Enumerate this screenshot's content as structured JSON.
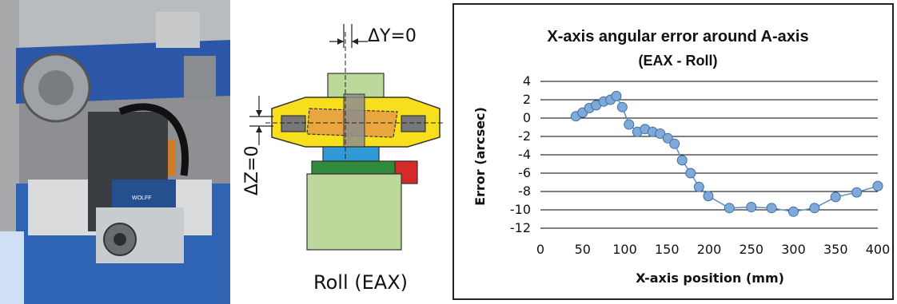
{
  "schematic": {
    "delta_y_label": "ΔY=0",
    "delta_z_label": "ΔZ=0",
    "caption": "Roll (EAX)"
  },
  "photo": {
    "label_plate_text": "WOLFF"
  },
  "colors": {
    "marker": "#7fa9d9",
    "marker_edge": "#3f6fa6",
    "line": "#5b8cc7",
    "grid": "#000000"
  },
  "chart_data": {
    "type": "line",
    "title_line1": "X-axis angular error around A-axis",
    "title_line2": "(EAX - Roll)",
    "xlabel": "X-axis position (mm)",
    "ylabel": "Error (arcsec)",
    "xlim": [
      0,
      400
    ],
    "ylim": [
      -12,
      4
    ],
    "xticks": [
      0,
      50,
      100,
      150,
      200,
      250,
      300,
      350,
      400
    ],
    "yticks": [
      4,
      2,
      0,
      -2,
      -4,
      -6,
      -8,
      -10,
      -12
    ],
    "grid": "horizontal",
    "series": [
      {
        "x": [
          42,
          50,
          58,
          66,
          75,
          83,
          90,
          97,
          105,
          115,
          124,
          133,
          142,
          151,
          159,
          168,
          178,
          188,
          199,
          224,
          250,
          274,
          300,
          325,
          350,
          375,
          400
        ],
        "y": [
          0.2,
          0.6,
          1.1,
          1.4,
          1.8,
          2.0,
          2.4,
          1.2,
          -0.7,
          -1.5,
          -1.2,
          -1.5,
          -1.7,
          -2.2,
          -2.8,
          -4.6,
          -6.0,
          -7.5,
          -8.5,
          -9.8,
          -9.7,
          -9.8,
          -10.2,
          -9.8,
          -8.6,
          -8.1,
          -7.4
        ]
      }
    ]
  }
}
